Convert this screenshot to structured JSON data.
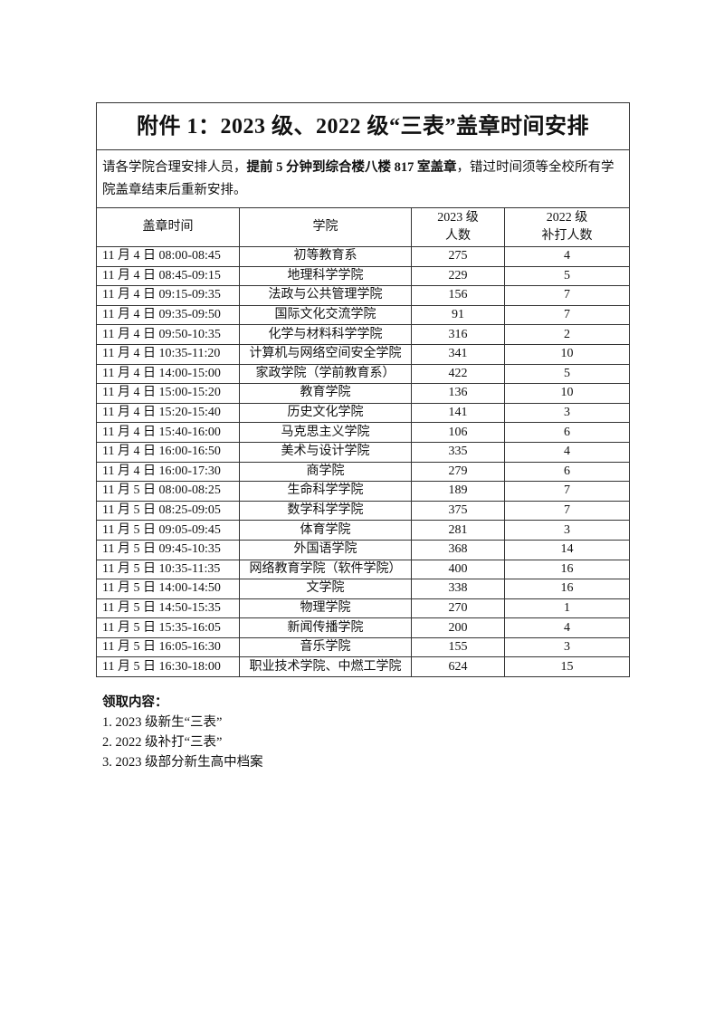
{
  "title": "附件 1：2023 级、2022 级“三表”盖章时间安排",
  "note": {
    "prefix": "请各学院合理安排人员，",
    "bold": "提前 5 分钟到综合楼八楼 817 室盖章",
    "suffix": "，错过时间须等全校所有学院盖章结束后重新安排。"
  },
  "headers": {
    "time": "盖章时间",
    "college": "学院",
    "count2023_l1": "2023 级",
    "count2023_l2": "人数",
    "count2022_l1": "2022 级",
    "count2022_l2": "补打人数"
  },
  "rows": [
    {
      "time": "11 月 4 日  08:00-08:45",
      "college": "初等教育系",
      "n2023": "275",
      "n2022": "4"
    },
    {
      "time": "11 月 4 日  08:45-09:15",
      "college": "地理科学学院",
      "n2023": "229",
      "n2022": "5"
    },
    {
      "time": "11 月 4 日  09:15-09:35",
      "college": "法政与公共管理学院",
      "n2023": "156",
      "n2022": "7"
    },
    {
      "time": "11 月 4 日  09:35-09:50",
      "college": "国际文化交流学院",
      "n2023": "91",
      "n2022": "7"
    },
    {
      "time": "11 月 4 日  09:50-10:35",
      "college": "化学与材料科学学院",
      "n2023": "316",
      "n2022": "2"
    },
    {
      "time": "11 月 4 日  10:35-11:20",
      "college": "计算机与网络空间安全学院",
      "n2023": "341",
      "n2022": "10"
    },
    {
      "time": "11 月 4 日  14:00-15:00",
      "college": "家政学院（学前教育系）",
      "n2023": "422",
      "n2022": "5"
    },
    {
      "time": "11 月 4 日  15:00-15:20",
      "college": "教育学院",
      "n2023": "136",
      "n2022": "10"
    },
    {
      "time": "11 月 4 日  15:20-15:40",
      "college": "历史文化学院",
      "n2023": "141",
      "n2022": "3"
    },
    {
      "time": "11 月 4 日  15:40-16:00",
      "college": "马克思主义学院",
      "n2023": "106",
      "n2022": "6"
    },
    {
      "time": "11 月 4 日  16:00-16:50",
      "college": "美术与设计学院",
      "n2023": "335",
      "n2022": "4"
    },
    {
      "time": "11 月 4 日  16:00-17:30",
      "college": "商学院",
      "n2023": "279",
      "n2022": "6"
    },
    {
      "time": "11 月 5 日  08:00-08:25",
      "college": "生命科学学院",
      "n2023": "189",
      "n2022": "7"
    },
    {
      "time": "11 月 5 日  08:25-09:05",
      "college": "数学科学学院",
      "n2023": "375",
      "n2022": "7"
    },
    {
      "time": "11 月 5 日  09:05-09:45",
      "college": "体育学院",
      "n2023": "281",
      "n2022": "3"
    },
    {
      "time": "11 月 5 日  09:45-10:35",
      "college": "外国语学院",
      "n2023": "368",
      "n2022": "14"
    },
    {
      "time": "11 月 5 日  10:35-11:35",
      "college": "网络教育学院（软件学院）",
      "n2023": "400",
      "n2022": "16"
    },
    {
      "time": "11 月 5 日  14:00-14:50",
      "college": "文学院",
      "n2023": "338",
      "n2022": "16"
    },
    {
      "time": "11 月 5 日  14:50-15:35",
      "college": "物理学院",
      "n2023": "270",
      "n2022": "1"
    },
    {
      "time": "11 月 5 日  15:35-16:05",
      "college": "新闻传播学院",
      "n2023": "200",
      "n2022": "4"
    },
    {
      "time": "11 月 5 日  16:05-16:30",
      "college": "音乐学院",
      "n2023": "155",
      "n2022": "3"
    },
    {
      "time": "11 月 5 日  16:30-18:00",
      "college": "职业技术学院、中燃工学院",
      "n2023": "624",
      "n2022": "15"
    }
  ],
  "footer": {
    "title": "领取内容：",
    "items": [
      "1. 2023 级新生“三表”",
      "2. 2022 级补打“三表”",
      "3. 2023 级部分新生高中档案"
    ]
  }
}
